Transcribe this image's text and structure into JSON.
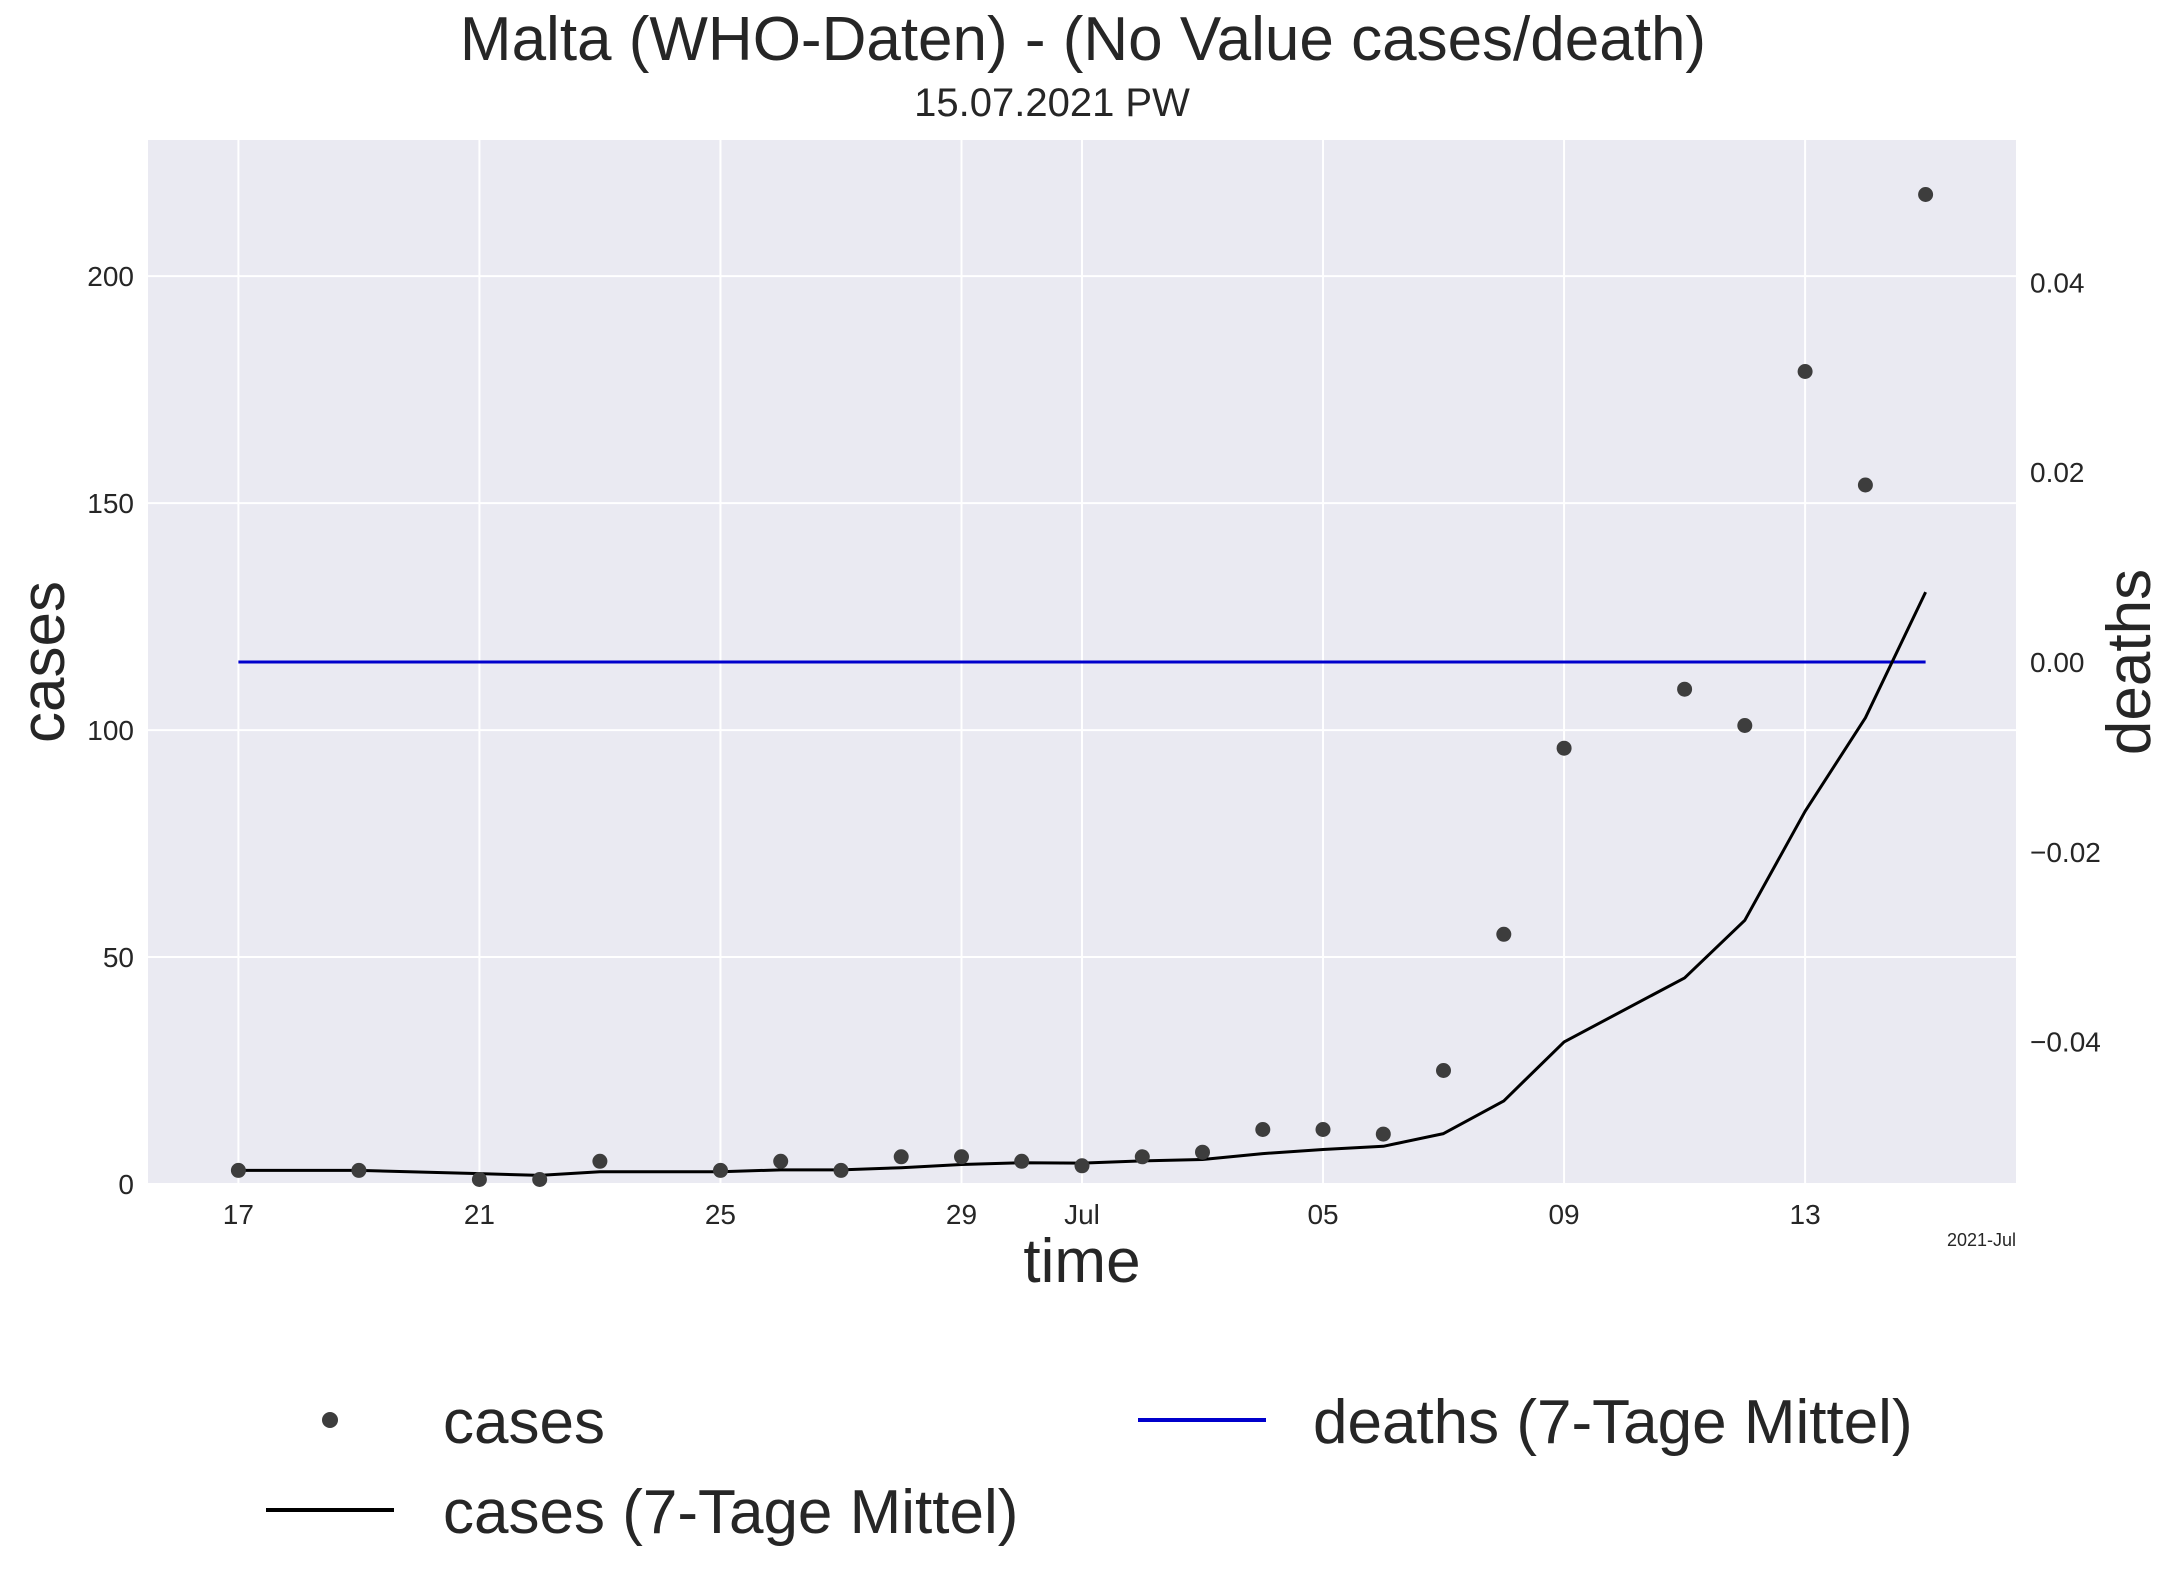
{
  "chart_data": {
    "type": "line",
    "title": "Malta (WHO-Daten) - (No Value cases/death)",
    "subtitle": "15.07.2021 PW",
    "xlabel": "time",
    "ylabel": "cases",
    "y2label": "deaths",
    "x_tick_labels": [
      "17",
      "21",
      "25",
      "29",
      "Jul",
      "05",
      "09",
      "13"
    ],
    "x_offset_label": "2021-Jul",
    "y_tick_labels": [
      "0",
      "50",
      "100",
      "150",
      "200"
    ],
    "y2_tick_labels": [
      "−0.04",
      "−0.02",
      "0.00",
      "0.02",
      "0.04"
    ],
    "ylim": [
      0,
      230
    ],
    "y2lim": [
      -0.055,
      0.055
    ],
    "grid": true,
    "legend_placement": "below",
    "colors": {
      "plot_background": "#eaeaf2",
      "grid": "#ffffff",
      "cases_points": "#3d3d3d",
      "cases_avg": "#000000",
      "deaths_avg": "#0000cc",
      "deaths_label": "#0000ff"
    },
    "series": [
      {
        "name": "cases",
        "kind": "scatter",
        "axis": "left",
        "x": [
          "2021-06-17",
          "2021-06-19",
          "2021-06-21",
          "2021-06-22",
          "2021-06-23",
          "2021-06-25",
          "2021-06-26",
          "2021-06-27",
          "2021-06-28",
          "2021-06-29",
          "2021-06-30",
          "2021-07-01",
          "2021-07-02",
          "2021-07-03",
          "2021-07-04",
          "2021-07-05",
          "2021-07-06",
          "2021-07-07",
          "2021-07-08",
          "2021-07-09",
          "2021-07-11",
          "2021-07-12",
          "2021-07-13",
          "2021-07-14",
          "2021-07-15"
        ],
        "values": [
          3,
          3,
          1,
          1,
          5,
          3,
          5,
          3,
          6,
          6,
          5,
          4,
          6,
          7,
          12,
          12,
          11,
          25,
          55,
          96,
          109,
          101,
          179,
          154,
          218
        ]
      },
      {
        "name": "cases (7-Tage Mittel)",
        "kind": "line",
        "axis": "left",
        "x": [
          "2021-06-17",
          "2021-06-19",
          "2021-06-21",
          "2021-06-22",
          "2021-06-23",
          "2021-06-25",
          "2021-06-26",
          "2021-06-27",
          "2021-06-28",
          "2021-06-29",
          "2021-06-30",
          "2021-07-01",
          "2021-07-02",
          "2021-07-03",
          "2021-07-04",
          "2021-07-05",
          "2021-07-06",
          "2021-07-07",
          "2021-07-08",
          "2021-07-09",
          "2021-07-11",
          "2021-07-12",
          "2021-07-13",
          "2021-07-14",
          "2021-07-15"
        ],
        "values": [
          3,
          3,
          2.3,
          1.9,
          2.7,
          2.7,
          3.1,
          3.1,
          3.6,
          4.3,
          4.7,
          4.6,
          5.1,
          5.4,
          6.7,
          7.6,
          8.3,
          11.1,
          18.3,
          31.3,
          45.4,
          58.1,
          82.1,
          102.7,
          130.4
        ]
      },
      {
        "name": "deaths (7-Tage Mittel)",
        "kind": "line",
        "axis": "right",
        "x": [
          "2021-06-17",
          "2021-07-15"
        ],
        "values": [
          0,
          0
        ]
      }
    ]
  }
}
